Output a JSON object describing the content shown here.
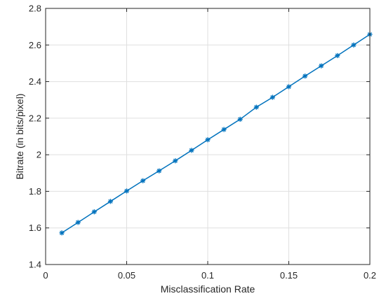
{
  "chart_data": {
    "type": "line",
    "title": "",
    "xlabel": "Misclassification Rate",
    "ylabel": "Bitrate (in bits/pixel)",
    "xlim": [
      0,
      0.2
    ],
    "ylim": [
      1.4,
      2.8
    ],
    "xticks": [
      0,
      0.05,
      0.1,
      0.15,
      0.2
    ],
    "xtick_labels": [
      "0",
      "0.05",
      "0.1",
      "0.15",
      "0.2"
    ],
    "yticks": [
      1.4,
      1.6,
      1.8,
      2.0,
      2.2,
      2.4,
      2.6,
      2.8
    ],
    "ytick_labels": [
      "1.4",
      "1.6",
      "1.8",
      "2",
      "2.2",
      "2.4",
      "2.6",
      "2.8"
    ],
    "grid": true,
    "legend": "none",
    "series": [
      {
        "color": "#0072bd",
        "marker": "asterisk",
        "x": [
          0.01,
          0.02,
          0.03,
          0.04,
          0.05,
          0.06,
          0.07,
          0.08,
          0.09,
          0.1,
          0.11,
          0.12,
          0.13,
          0.14,
          0.15,
          0.16,
          0.17,
          0.18,
          0.19,
          0.2
        ],
        "y": [
          1.573,
          1.63,
          1.688,
          1.745,
          1.802,
          1.858,
          1.912,
          1.967,
          2.024,
          2.082,
          2.138,
          2.194,
          2.26,
          2.314,
          2.372,
          2.43,
          2.486,
          2.542,
          2.6,
          2.658
        ]
      }
    ]
  }
}
